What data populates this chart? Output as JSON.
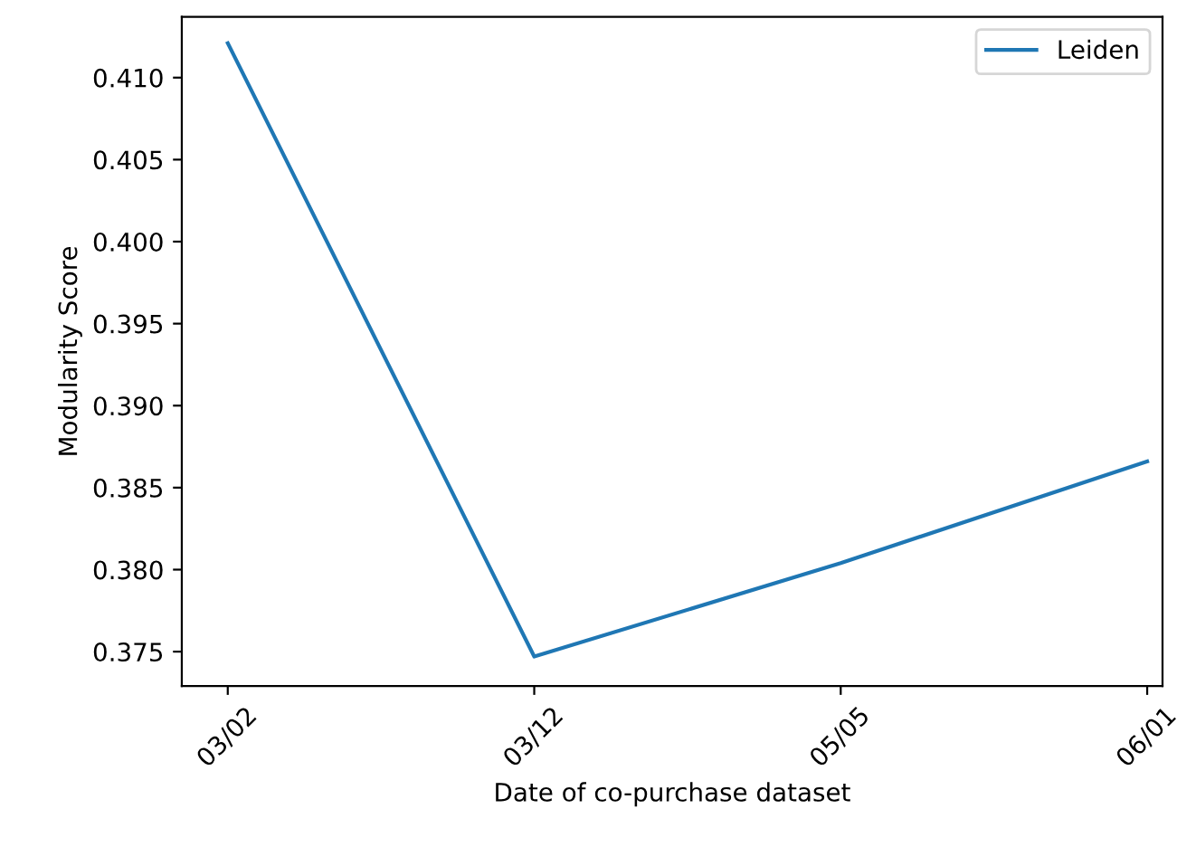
{
  "chart_data": {
    "type": "line",
    "xlabel": "Date of co-purchase dataset",
    "ylabel": "Modularity Score",
    "categories": [
      "03/02",
      "03/12",
      "05/05",
      "06/01"
    ],
    "series": [
      {
        "name": "Leiden",
        "color": "#1f77b4",
        "values": [
          0.4121,
          0.3747,
          0.3804,
          0.3866
        ]
      }
    ],
    "ylim": [
      0.3729,
      0.4137
    ],
    "yticks": [
      0.375,
      {
        "value": 0.38,
        "label": "0.380"
      },
      0.385,
      {
        "value": 0.39,
        "label": "0.390"
      },
      0.395,
      {
        "value": 0.4,
        "label": "0.400"
      },
      0.405,
      {
        "value": 0.41,
        "label": "0.410"
      }
    ],
    "grid": false,
    "legend": "top right"
  }
}
